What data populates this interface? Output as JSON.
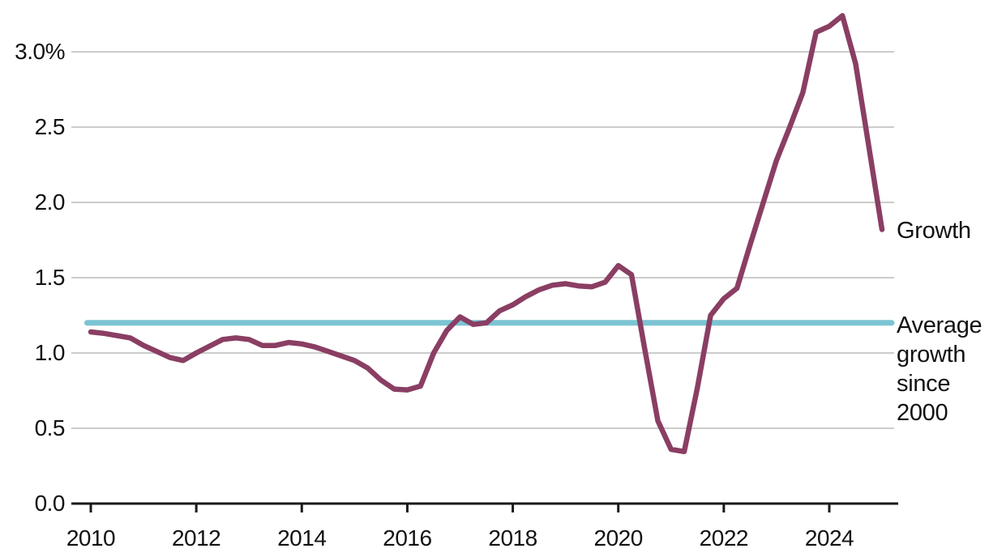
{
  "colors": {
    "growth_line": "#8A3E63",
    "average_line": "#7CC4D3",
    "gridline": "#CCCCCC",
    "axis": "#1A1A1A",
    "text": "#121212",
    "background": "#FFFFFF"
  },
  "chart_data": {
    "type": "line",
    "title": "",
    "xlabel": "",
    "ylabel": "%",
    "grid": "horizontal",
    "legend_position": "right-margin",
    "xlim": [
      2009.9,
      2025.35
    ],
    "ylim": [
      0,
      3.35
    ],
    "y_ticks": {
      "values": [
        3.0,
        2.5,
        2.0,
        1.5,
        1.0,
        0.5,
        0.0
      ],
      "labels": [
        "3.0%",
        "2.5",
        "2.0",
        "1.5",
        "1.0",
        "0.5",
        "0.0"
      ]
    },
    "x_ticks": {
      "values": [
        2010,
        2012,
        2014,
        2016,
        2018,
        2020,
        2022,
        2024
      ],
      "labels": [
        "2010",
        "2012",
        "2014",
        "2016",
        "2018",
        "2020",
        "2022",
        "2024"
      ]
    },
    "x": [
      2010,
      2010.25,
      2010.5,
      2010.75,
      2011,
      2011.25,
      2011.5,
      2011.75,
      2012,
      2012.25,
      2012.5,
      2012.75,
      2013,
      2013.25,
      2013.5,
      2013.75,
      2014,
      2014.25,
      2014.5,
      2014.75,
      2015,
      2015.25,
      2015.5,
      2015.75,
      2016,
      2016.25,
      2016.5,
      2016.75,
      2017,
      2017.25,
      2017.5,
      2017.75,
      2018,
      2018.25,
      2018.5,
      2018.75,
      2019,
      2019.25,
      2019.5,
      2019.75,
      2020,
      2020.25,
      2020.5,
      2020.75,
      2021,
      2021.25,
      2021.5,
      2021.75,
      2022,
      2022.25,
      2022.5,
      2022.75,
      2023,
      2023.25,
      2023.5,
      2023.75,
      2024,
      2024.25,
      2024.5,
      2024.75,
      2025
    ],
    "series": [
      {
        "name": "Growth",
        "kind": "data",
        "values": [
          1.14,
          1.13,
          1.115,
          1.1,
          1.05,
          1.01,
          0.97,
          0.95,
          1.0,
          1.045,
          1.09,
          1.1,
          1.09,
          1.05,
          1.05,
          1.07,
          1.06,
          1.04,
          1.01,
          0.98,
          0.95,
          0.9,
          0.82,
          0.76,
          0.755,
          0.78,
          1.0,
          1.15,
          1.24,
          1.19,
          1.2,
          1.28,
          1.32,
          1.375,
          1.42,
          1.45,
          1.46,
          1.445,
          1.44,
          1.47,
          1.58,
          1.52,
          1.03,
          0.55,
          0.36,
          0.345,
          0.77,
          1.25,
          1.36,
          1.43,
          1.72,
          2.0,
          2.28,
          2.5,
          2.73,
          3.13,
          3.17,
          3.24,
          2.92,
          2.37,
          1.82
        ]
      },
      {
        "name": "Average growth since 2000",
        "kind": "constant",
        "value": 1.2
      }
    ]
  }
}
